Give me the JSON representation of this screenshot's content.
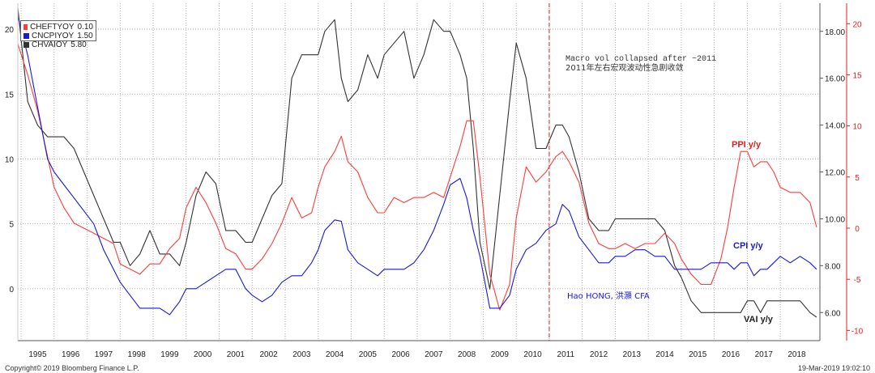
{
  "legend": [
    {
      "code": "CHEFTYOY",
      "value": "0.10",
      "color": "#ff3b3b"
    },
    {
      "code": "CNCPIYOY",
      "value": "1.50",
      "color": "#1818d8"
    },
    {
      "code": "CHVAIOY",
      "value": "5.80",
      "color": "#333333"
    }
  ],
  "annotations": {
    "macro_en": "Macro vol collapsed after ~2011",
    "macro_cn": "2011年左右宏观波动性急剧收敛",
    "ppi": "PPI y/y",
    "cpi": "CPI y/y",
    "vai": "VAI y/y",
    "author": "Hao HONG, 洪灝 CFA"
  },
  "footer": {
    "copyright": "Copyright© 2019 Bloomberg Finance L.P.",
    "timestamp": "19-Mar-2019 19:02:10"
  },
  "chart_data": {
    "type": "line",
    "x_ticks": [
      "1995",
      "1996",
      "1997",
      "1998",
      "1999",
      "2000",
      "2001",
      "2002",
      "2003",
      "2004",
      "2005",
      "2006",
      "2007",
      "2008",
      "2009",
      "2010",
      "2011",
      "2012",
      "2013",
      "2014",
      "2015",
      "2016",
      "2017",
      "2018"
    ],
    "left_axis": {
      "ticks": [
        20,
        15,
        10,
        5,
        0
      ],
      "ylim": [
        -4,
        22
      ]
    },
    "inner_right_axis": {
      "ticks": [
        "18.00",
        "16.00",
        "14.00",
        "12.00",
        "10.00",
        "8.00",
        "6.00"
      ],
      "ylim": [
        4.8,
        19.2
      ]
    },
    "outer_right_axis": {
      "ticks": [
        20,
        15,
        10,
        5,
        0,
        -5,
        -10
      ],
      "ylim": [
        -11,
        22
      ],
      "color": "#e02020"
    },
    "xlim": [
      1994.9,
      2019.2
    ],
    "marker_line_x": 2011.0,
    "series": [
      {
        "name": "CHEFTYOY",
        "axis": "outer_right",
        "color": "#ff3b3b",
        "x": [
          1994.9,
          1995.2,
          1995.5,
          1995.8,
          1996.0,
          1996.3,
          1996.6,
          1996.9,
          1997.2,
          1997.5,
          1997.8,
          1998.0,
          1998.3,
          1998.6,
          1998.9,
          1999.2,
          1999.5,
          1999.8,
          2000.0,
          2000.3,
          2000.6,
          2000.9,
          2001.2,
          2001.5,
          2001.8,
          2002.0,
          2002.3,
          2002.6,
          2002.9,
          2003.2,
          2003.5,
          2003.8,
          2004.0,
          2004.2,
          2004.5,
          2004.7,
          2004.9,
          2005.2,
          2005.5,
          2005.8,
          2006.0,
          2006.3,
          2006.6,
          2006.9,
          2007.2,
          2007.5,
          2007.8,
          2008.0,
          2008.3,
          2008.5,
          2008.7,
          2008.9,
          2009.2,
          2009.5,
          2009.8,
          2010.0,
          2010.3,
          2010.6,
          2010.9,
          2011.2,
          2011.4,
          2011.6,
          2011.9,
          2012.2,
          2012.5,
          2012.8,
          2013.0,
          2013.3,
          2013.6,
          2013.9,
          2014.2,
          2014.5,
          2014.8,
          2015.0,
          2015.3,
          2015.6,
          2015.9,
          2016.2,
          2016.4,
          2016.6,
          2016.8,
          2017.0,
          2017.2,
          2017.4,
          2017.6,
          2017.8,
          2018.0,
          2018.3,
          2018.6,
          2018.9,
          2019.1
        ],
        "y": [
          18,
          15,
          11.5,
          7,
          4,
          2,
          0.5,
          0,
          -0.5,
          -1,
          -1.5,
          -3.5,
          -4,
          -4.5,
          -3.5,
          -3.5,
          -2,
          -1,
          2,
          4,
          2.5,
          0.5,
          -2,
          -2.5,
          -4,
          -4,
          -3,
          -1.5,
          0.5,
          3,
          1,
          1.5,
          4,
          6,
          7.5,
          9,
          6.5,
          5.5,
          3,
          1.5,
          1.5,
          3,
          2.5,
          3,
          3,
          3.5,
          3,
          5,
          8,
          10.5,
          10.5,
          5,
          -4.5,
          -8,
          -5.5,
          1,
          6,
          4.5,
          5.5,
          7,
          7.5,
          6.5,
          4.5,
          0.5,
          -1.5,
          -2,
          -2,
          -1.5,
          -2,
          -1.5,
          -1.5,
          -0.5,
          -1.5,
          -3,
          -4.5,
          -5.5,
          -5.5,
          -3,
          0,
          4,
          7.5,
          7.5,
          6,
          6.5,
          6.5,
          5.5,
          4,
          3.5,
          3.5,
          2.5,
          0.1
        ]
      },
      {
        "name": "CNCPIYOY",
        "axis": "left",
        "color": "#1818d8",
        "x": [
          1994.9,
          1995.2,
          1995.5,
          1995.8,
          1996.0,
          1996.3,
          1996.6,
          1996.9,
          1997.2,
          1997.5,
          1997.8,
          1998.0,
          1998.3,
          1998.6,
          1998.9,
          1999.2,
          1999.5,
          1999.8,
          2000.0,
          2000.3,
          2000.6,
          2000.9,
          2001.2,
          2001.5,
          2001.8,
          2002.0,
          2002.3,
          2002.6,
          2002.9,
          2003.2,
          2003.5,
          2003.8,
          2004.0,
          2004.2,
          2004.5,
          2004.7,
          2004.9,
          2005.2,
          2005.5,
          2005.8,
          2006.0,
          2006.3,
          2006.6,
          2006.9,
          2007.2,
          2007.5,
          2007.8,
          2008.0,
          2008.3,
          2008.5,
          2008.7,
          2008.9,
          2009.2,
          2009.5,
          2009.8,
          2010.0,
          2010.3,
          2010.6,
          2010.9,
          2011.2,
          2011.4,
          2011.6,
          2011.9,
          2012.2,
          2012.5,
          2012.8,
          2013.0,
          2013.3,
          2013.6,
          2013.9,
          2014.2,
          2014.5,
          2014.8,
          2015.0,
          2015.3,
          2015.6,
          2015.9,
          2016.2,
          2016.4,
          2016.6,
          2016.8,
          2017.0,
          2017.2,
          2017.4,
          2017.6,
          2017.8,
          2018.0,
          2018.3,
          2018.6,
          2018.9,
          2019.1
        ],
        "y": [
          21,
          18,
          14,
          10,
          9,
          8,
          7,
          6,
          5,
          3,
          1.5,
          0.5,
          -0.5,
          -1.5,
          -1.5,
          -1.5,
          -2,
          -1,
          0,
          0,
          0.5,
          1,
          1.5,
          1.5,
          0,
          -0.5,
          -1,
          -0.5,
          0.5,
          1,
          1,
          2,
          3,
          4.5,
          5.3,
          5.2,
          3,
          2,
          1.5,
          1,
          1.5,
          1.5,
          1.5,
          2,
          3,
          4.5,
          6.5,
          8,
          8.5,
          7,
          4.5,
          2.5,
          -1.5,
          -1.5,
          -0.5,
          1.5,
          3,
          3.5,
          4.5,
          5,
          6.5,
          6,
          4,
          3,
          2,
          2,
          2.5,
          2.5,
          3,
          3,
          2.5,
          2.5,
          1.5,
          1.5,
          1.5,
          1.5,
          2,
          2,
          2,
          1.5,
          2,
          2,
          1,
          1.5,
          1.5,
          2,
          2.5,
          2,
          2.5,
          2,
          1.5
        ]
      },
      {
        "name": "CHVAIOY",
        "axis": "inner_right",
        "color": "#333333",
        "x": [
          1994.9,
          1995.2,
          1995.5,
          1995.8,
          1996.0,
          1996.3,
          1996.6,
          1996.9,
          1997.2,
          1997.5,
          1997.8,
          1998.0,
          1998.3,
          1998.6,
          1998.9,
          1999.2,
          1999.5,
          1999.8,
          2000.0,
          2000.3,
          2000.6,
          2000.9,
          2001.2,
          2001.5,
          2001.8,
          2002.0,
          2002.3,
          2002.6,
          2002.9,
          2003.2,
          2003.5,
          2003.8,
          2004.0,
          2004.2,
          2004.5,
          2004.7,
          2004.9,
          2005.2,
          2005.5,
          2005.8,
          2006.0,
          2006.3,
          2006.6,
          2006.9,
          2007.2,
          2007.5,
          2007.8,
          2008.0,
          2008.3,
          2008.5,
          2008.7,
          2008.9,
          2009.2,
          2009.5,
          2009.8,
          2010.0,
          2010.3,
          2010.6,
          2010.9,
          2011.2,
          2011.4,
          2011.6,
          2011.9,
          2012.2,
          2012.5,
          2012.8,
          2013.0,
          2013.3,
          2013.6,
          2013.9,
          2014.2,
          2014.5,
          2014.8,
          2015.0,
          2015.3,
          2015.6,
          2015.9,
          2016.2,
          2016.4,
          2016.6,
          2016.8,
          2017.0,
          2017.2,
          2017.4,
          2017.6,
          2017.8,
          2018.0,
          2018.3,
          2018.6,
          2018.9,
          2019.1
        ],
        "y": [
          19,
          15,
          14,
          13.5,
          13.5,
          13.5,
          13,
          12,
          11,
          10,
          9,
          9,
          8,
          8.5,
          9.5,
          8.5,
          8.5,
          8,
          9,
          11,
          12,
          11.5,
          9.5,
          9.5,
          9,
          9,
          10,
          11,
          11.5,
          16,
          17,
          17,
          17,
          18,
          18.5,
          16,
          15,
          15.5,
          17,
          16,
          17,
          17.5,
          18,
          16,
          17,
          18.5,
          18,
          18,
          17,
          16,
          13,
          9,
          7,
          11,
          15,
          17.5,
          16,
          13,
          13,
          14,
          14,
          13.5,
          12,
          10,
          9.5,
          9.5,
          10,
          10,
          10,
          10,
          10,
          9.5,
          8,
          7.5,
          6.5,
          6,
          6,
          6,
          6,
          6,
          6,
          6.5,
          6.5,
          6,
          6.5,
          6.5,
          6.5,
          6.5,
          6.5,
          6,
          5.8
        ]
      }
    ]
  }
}
